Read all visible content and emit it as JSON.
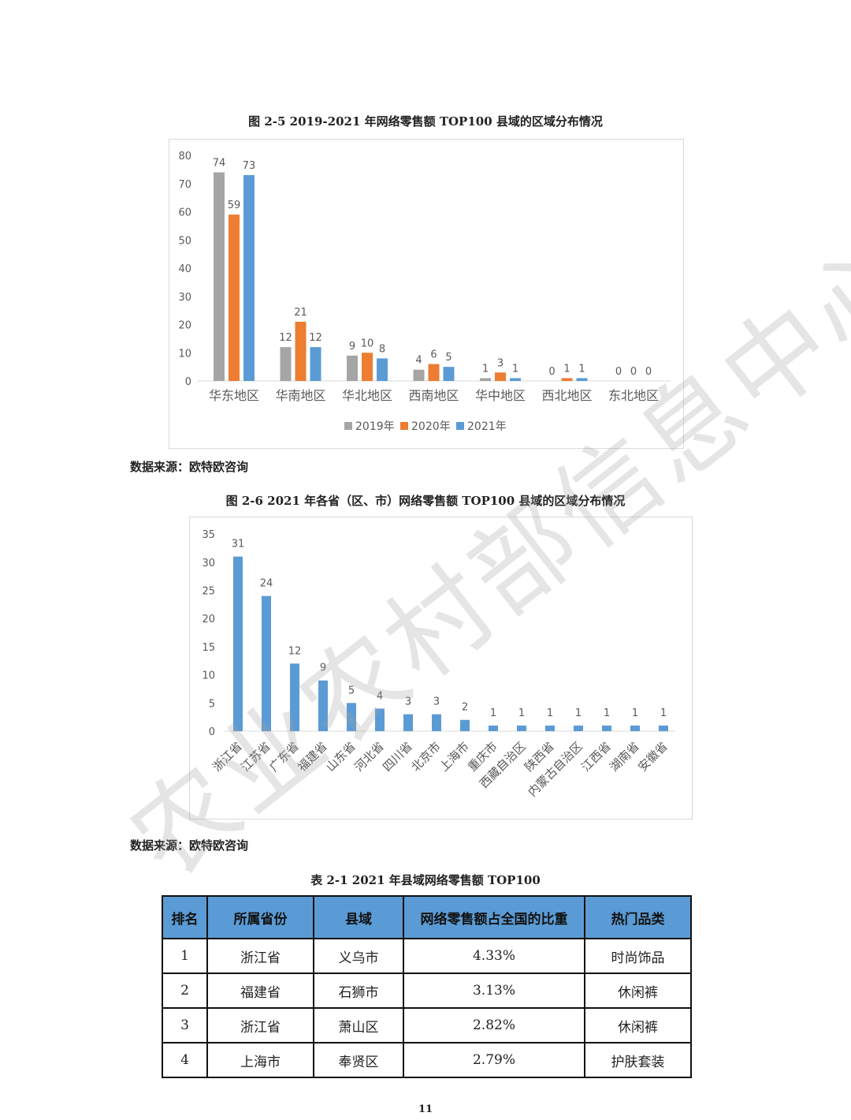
{
  "watermark": "农业农村部信息中心",
  "figure1": {
    "caption": "图 2-5 2019-2021 年网络零售额 TOP100 县域的区域分布情况",
    "source": "数据来源：欧特欧咨询"
  },
  "figure2": {
    "caption": "图 2-6 2021 年各省（区、市）网络零售额 TOP100 县域的区域分布情况",
    "source": "数据来源：欧特欧咨询"
  },
  "chart_data": [
    {
      "type": "bar",
      "title": "图 2-5 2019-2021 年网络零售额 TOP100 县域的区域分布情况",
      "categories": [
        "华东地区",
        "华南地区",
        "华北地区",
        "西南地区",
        "华中地区",
        "西北地区",
        "东北地区"
      ],
      "series": [
        {
          "name": "2019年",
          "color": "#a5a5a5",
          "values": [
            74,
            12,
            9,
            4,
            1,
            0,
            0
          ]
        },
        {
          "name": "2020年",
          "color": "#ed7d31",
          "values": [
            59,
            21,
            10,
            6,
            3,
            1,
            0
          ]
        },
        {
          "name": "2021年",
          "color": "#5b9bd5",
          "values": [
            73,
            12,
            8,
            5,
            1,
            1,
            0
          ]
        }
      ],
      "yticks": [
        0,
        10,
        20,
        30,
        40,
        50,
        60,
        70,
        80
      ],
      "ylim": [
        0,
        80
      ],
      "legend": "bottom",
      "data_labels": true,
      "grid": false
    },
    {
      "type": "bar",
      "title": "图 2-6 2021 年各省（区、市）网络零售额 TOP100 县域的区域分布情况",
      "categories": [
        "浙江省",
        "江苏省",
        "广东省",
        "福建省",
        "山东省",
        "河北省",
        "四川省",
        "北京市",
        "上海市",
        "重庆市",
        "西藏自治区",
        "陕西省",
        "内蒙古自治区",
        "江西省",
        "湖南省",
        "安徽省"
      ],
      "values": [
        31,
        24,
        12,
        9,
        5,
        4,
        3,
        3,
        2,
        1,
        1,
        1,
        1,
        1,
        1,
        1
      ],
      "color": "#5b9bd5",
      "yticks": [
        0,
        5,
        10,
        15,
        20,
        25,
        30,
        35
      ],
      "ylim": [
        0,
        35
      ],
      "data_labels": true,
      "grid": false
    }
  ],
  "table": {
    "caption": "表 2-1 2021 年县域网络零售额 TOP100",
    "header_color": "#5b9bd5",
    "headers": [
      "排名",
      "所属省份",
      "县域",
      "网络零售额占全国的比重",
      "热门品类"
    ],
    "rows": [
      [
        "1",
        "浙江省",
        "义乌市",
        "4.33%",
        "时尚饰品"
      ],
      [
        "2",
        "福建省",
        "石狮市",
        "3.13%",
        "休闲裤"
      ],
      [
        "3",
        "浙江省",
        "萧山区",
        "2.82%",
        "休闲裤"
      ],
      [
        "4",
        "上海市",
        "奉贤区",
        "2.79%",
        "护肤套装"
      ]
    ]
  },
  "page_number": "11"
}
